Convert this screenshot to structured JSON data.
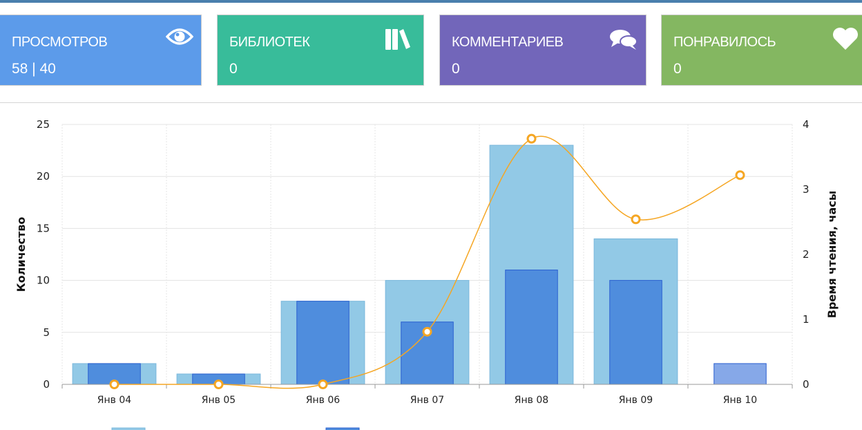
{
  "cards": [
    {
      "label": "ПРОСМОТРОВ",
      "value": "58 | 40",
      "color": "#5c9bea",
      "icon": "eye-icon"
    },
    {
      "label": "БИБЛИОТЕК",
      "value": "0",
      "color": "#38bc9a",
      "icon": "books-icon"
    },
    {
      "label": "КОММЕНТАРИЕВ",
      "value": "0",
      "color": "#7266ba",
      "icon": "comments-icon"
    },
    {
      "label": "ПОНРАВИЛОСЬ",
      "value": "0",
      "color": "#84b761",
      "icon": "heart-icon"
    }
  ],
  "chart_data": {
    "type": "bar+line",
    "categories": [
      "Янв 04",
      "Янв 05",
      "Янв 06",
      "Янв 07",
      "Янв 08",
      "Янв 09",
      "Янв 10"
    ],
    "ylabel": "Количество",
    "y2label": "Время чтения, часы",
    "ylim": [
      0,
      25
    ],
    "y2lim": [
      0,
      4
    ],
    "yticks": [
      "0",
      "5",
      "10",
      "15",
      "20",
      "25"
    ],
    "y2ticks": [
      "0",
      "1",
      "2",
      "3",
      "4"
    ],
    "grid": true,
    "series": [
      {
        "type": "bar",
        "axis": "left",
        "color": "#92c9e6",
        "values": [
          2,
          1,
          8,
          10,
          23,
          14,
          0
        ]
      },
      {
        "type": "bar",
        "axis": "left",
        "color": "#4f8ddd",
        "values": [
          2,
          1,
          8,
          6,
          11,
          10,
          2
        ]
      },
      {
        "type": "line",
        "axis": "right",
        "color": "#f5a623",
        "values": [
          0,
          0,
          0,
          0.81,
          3.78,
          2.54,
          3.22
        ]
      }
    ],
    "legend": "bottom"
  }
}
